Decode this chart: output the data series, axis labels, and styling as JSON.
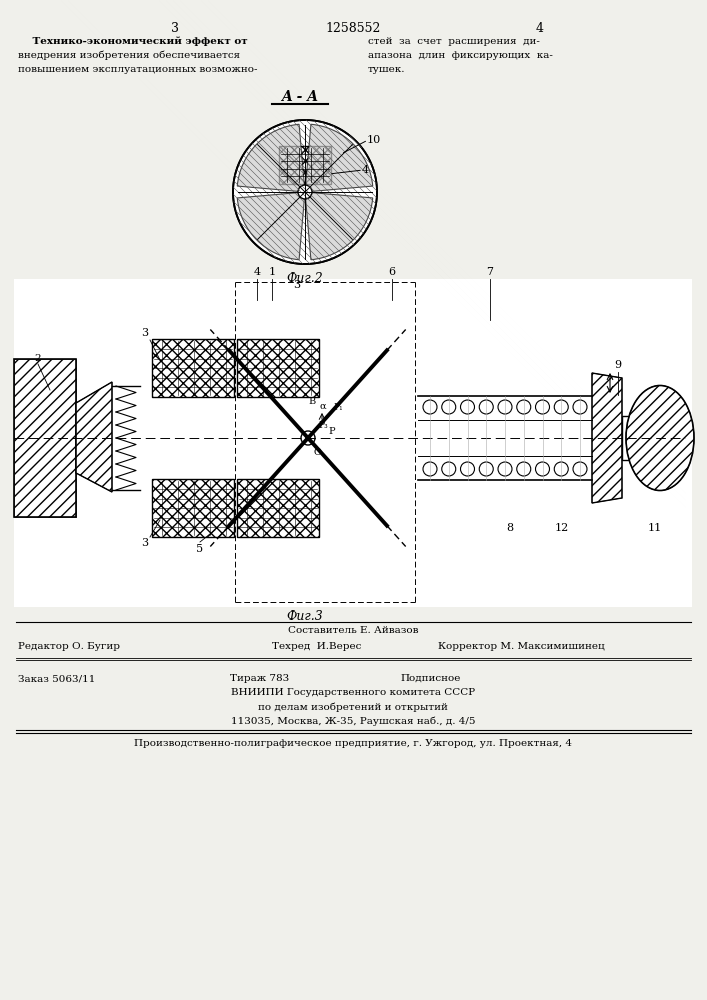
{
  "page_left": "3",
  "page_center": "1258552",
  "page_right": "4",
  "bg_color": "#f0f0eb",
  "fig2_label": "Фиг.2",
  "fig3_label": "Фиг.3",
  "section_aa": "A - A",
  "footer_sestavitel": "Составитель Е. Айвазов",
  "footer_redaktor": "Редактор О. Бугир",
  "footer_tehred": "Техред  И.Верес",
  "footer_korrektor": "Корректор М. Максимишинец",
  "footer_order": "Заказ 5063/11",
  "footer_tirazh": "Тираж 783",
  "footer_podpisnoe": "Подписное",
  "footer_vnipi": "ВНИИПИ Государственного комитета СССР",
  "footer_affairs": "по делам изобретений и открытий",
  "footer_address": "113035, Москва, Ж-35, Раушская наб., д. 4/5",
  "footer_plant": "Производственно-полиграфическое предприятие, г. Ужгород, ул. Проектная, 4",
  "text_left": [
    "    Технико-экономический эффект от",
    "внедрения изобретения обеспечивается",
    "повышением эксплуатационных возможно-"
  ],
  "text_right": [
    "стей  за  счет  расширения  ди-",
    "апазона  длин  фиксирующих  ка-",
    "тушек."
  ]
}
